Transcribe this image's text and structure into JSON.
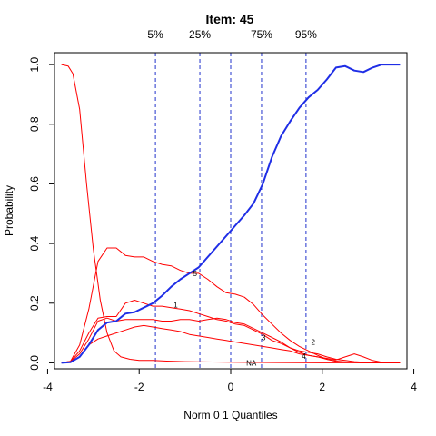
{
  "chart_data": {
    "type": "line",
    "title": "Item:  45",
    "xlabel": "Norm 0 1 Quantiles",
    "ylabel": "Probability",
    "xlim": [
      -3.85,
      3.85
    ],
    "ylim": [
      -0.02,
      1.04
    ],
    "grid": false,
    "legend": "none",
    "x_ticks": [
      -4,
      -2,
      0,
      2,
      4
    ],
    "x_tick_labels": [
      "-4",
      "-2",
      "0",
      "2",
      "4"
    ],
    "y_ticks": [
      0.0,
      0.2,
      0.4,
      0.6,
      0.8,
      1.0
    ],
    "y_tick_labels": [
      "0.0",
      "0.2",
      "0.4",
      "0.6",
      "0.8",
      "1.0"
    ],
    "quantile_lines": [
      {
        "label": "5%",
        "x": -1.645
      },
      {
        "label": "25%",
        "x": -0.674
      },
      {
        "label": "",
        "x": 0.0
      },
      {
        "label": "75%",
        "x": 0.674
      },
      {
        "label": "95%",
        "x": 1.645
      }
    ],
    "colors": {
      "keyed": "#1f2ee6",
      "options": "#ff0000",
      "quantile": "#2233cc",
      "axes": "#000000"
    },
    "series": [
      {
        "label": "5",
        "color": "#1f2ee6",
        "keyed": true,
        "label_at": [
          -0.78,
          0.3
        ],
        "x": [
          -3.7,
          -3.5,
          -3.3,
          -3.1,
          -2.9,
          -2.7,
          -2.5,
          -2.3,
          -2.1,
          -1.9,
          -1.7,
          -1.5,
          -1.3,
          -1.1,
          -0.9,
          -0.7,
          -0.5,
          -0.3,
          -0.1,
          0.1,
          0.3,
          0.5,
          0.7,
          0.9,
          1.1,
          1.3,
          1.5,
          1.7,
          1.9,
          2.1,
          2.3,
          2.5,
          2.7,
          2.9,
          3.1,
          3.3,
          3.5,
          3.7
        ],
        "y": [
          0.0,
          0.002,
          0.02,
          0.06,
          0.11,
          0.135,
          0.14,
          0.165,
          0.17,
          0.185,
          0.2,
          0.225,
          0.255,
          0.28,
          0.3,
          0.32,
          0.355,
          0.39,
          0.425,
          0.46,
          0.495,
          0.535,
          0.6,
          0.69,
          0.76,
          0.81,
          0.855,
          0.89,
          0.915,
          0.95,
          0.99,
          0.995,
          0.98,
          0.975,
          0.99,
          1.0,
          1.0,
          1.0
        ]
      },
      {
        "label": "NA",
        "color": "#ff0000",
        "keyed": false,
        "label_at": [
          0.45,
          0.0
        ],
        "x": [
          -3.7,
          -3.55,
          -3.45,
          -3.3,
          -3.15,
          -3.0,
          -2.85,
          -2.7,
          -2.55,
          -2.4,
          -2.2,
          -2.0,
          -1.7,
          -1.4,
          -1.0,
          0.0,
          1.0,
          2.0,
          3.0,
          3.7
        ],
        "y": [
          1.0,
          0.995,
          0.97,
          0.85,
          0.6,
          0.38,
          0.21,
          0.1,
          0.04,
          0.02,
          0.012,
          0.008,
          0.008,
          0.006,
          0.004,
          0.002,
          0.001,
          0.0,
          0.0,
          0.0
        ]
      },
      {
        "label": "1",
        "color": "#ff0000",
        "keyed": false,
        "label_at": [
          -1.2,
          0.195
        ],
        "x": [
          -3.7,
          -3.5,
          -3.3,
          -3.1,
          -2.9,
          -2.7,
          -2.5,
          -2.3,
          -2.1,
          -1.9,
          -1.7,
          -1.5,
          -1.3,
          -1.1,
          -0.9,
          -0.7,
          -0.5,
          -0.3,
          -0.1,
          0.1,
          0.3,
          0.5,
          0.7,
          0.9,
          1.1,
          1.3,
          1.5,
          1.7,
          1.9,
          2.1,
          2.3,
          2.5,
          2.7,
          2.9,
          3.1,
          3.3,
          3.5,
          3.7
        ],
        "y": [
          0.0,
          0.005,
          0.04,
          0.1,
          0.15,
          0.155,
          0.155,
          0.2,
          0.21,
          0.2,
          0.19,
          0.19,
          0.185,
          0.18,
          0.175,
          0.165,
          0.155,
          0.145,
          0.14,
          0.13,
          0.125,
          0.11,
          0.095,
          0.075,
          0.065,
          0.05,
          0.04,
          0.035,
          0.03,
          0.02,
          0.012,
          0.008,
          0.004,
          0.002,
          0.001,
          0.0,
          0.0,
          0.0
        ]
      },
      {
        "label": "2",
        "color": "#ff0000",
        "keyed": false,
        "label_at": [
          1.8,
          0.07
        ],
        "x": [
          -3.7,
          -3.5,
          -3.3,
          -3.1,
          -2.9,
          -2.7,
          -2.5,
          -2.3,
          -2.1,
          -1.9,
          -1.7,
          -1.5,
          -1.3,
          -1.1,
          -0.9,
          -0.7,
          -0.5,
          -0.3,
          -0.1,
          0.1,
          0.3,
          0.5,
          0.7,
          0.9,
          1.1,
          1.3,
          1.5,
          1.7,
          1.9,
          2.1,
          2.3,
          2.5,
          2.7,
          2.9,
          3.1,
          3.3,
          3.5,
          3.7
        ],
        "y": [
          0.0,
          0.004,
          0.03,
          0.08,
          0.14,
          0.15,
          0.14,
          0.145,
          0.145,
          0.145,
          0.145,
          0.14,
          0.14,
          0.145,
          0.145,
          0.14,
          0.145,
          0.15,
          0.145,
          0.135,
          0.13,
          0.115,
          0.1,
          0.085,
          0.07,
          0.05,
          0.035,
          0.025,
          0.02,
          0.015,
          0.01,
          0.02,
          0.03,
          0.02,
          0.008,
          0.002,
          0.0,
          0.0
        ]
      },
      {
        "label": "3",
        "color": "#ff0000",
        "keyed": false,
        "label_at": [
          0.72,
          0.085
        ],
        "x": [
          -3.7,
          -3.5,
          -3.3,
          -3.1,
          -2.9,
          -2.7,
          -2.5,
          -2.3,
          -2.1,
          -1.9,
          -1.7,
          -1.5,
          -1.3,
          -1.1,
          -0.9,
          -0.7,
          -0.5,
          -0.3,
          -0.1,
          0.1,
          0.3,
          0.5,
          0.7,
          0.9,
          1.1,
          1.3,
          1.5,
          1.7,
          1.9,
          2.1,
          2.3,
          2.5,
          2.7,
          2.9,
          3.1,
          3.3,
          3.5,
          3.7
        ],
        "y": [
          0.0,
          0.003,
          0.02,
          0.06,
          0.08,
          0.09,
          0.1,
          0.11,
          0.12,
          0.125,
          0.12,
          0.115,
          0.11,
          0.105,
          0.095,
          0.09,
          0.085,
          0.08,
          0.075,
          0.07,
          0.065,
          0.06,
          0.055,
          0.05,
          0.045,
          0.04,
          0.03,
          0.025,
          0.02,
          0.012,
          0.006,
          0.003,
          0.001,
          0.0,
          0.0,
          0.0,
          0.0,
          0.0
        ]
      },
      {
        "label": "4",
        "color": "#ff0000",
        "keyed": false,
        "label_at": [
          1.6,
          0.022
        ],
        "x": [
          -3.7,
          -3.5,
          -3.3,
          -3.1,
          -2.9,
          -2.7,
          -2.5,
          -2.3,
          -2.1,
          -1.9,
          -1.7,
          -1.5,
          -1.3,
          -1.1,
          -0.9,
          -0.7,
          -0.5,
          -0.3,
          -0.1,
          0.1,
          0.3,
          0.5,
          0.7,
          0.9,
          1.1,
          1.3,
          1.5,
          1.7,
          1.9,
          2.1,
          2.3,
          2.5,
          2.7,
          2.9,
          3.1,
          3.3,
          3.5,
          3.7
        ],
        "y": [
          0.0,
          0.005,
          0.06,
          0.18,
          0.34,
          0.385,
          0.385,
          0.36,
          0.355,
          0.355,
          0.34,
          0.33,
          0.325,
          0.31,
          0.3,
          0.3,
          0.28,
          0.255,
          0.235,
          0.23,
          0.22,
          0.195,
          0.16,
          0.13,
          0.1,
          0.075,
          0.055,
          0.04,
          0.025,
          0.012,
          0.005,
          0.002,
          0.001,
          0.0,
          0.0,
          0.0,
          0.0,
          0.0
        ]
      }
    ]
  }
}
